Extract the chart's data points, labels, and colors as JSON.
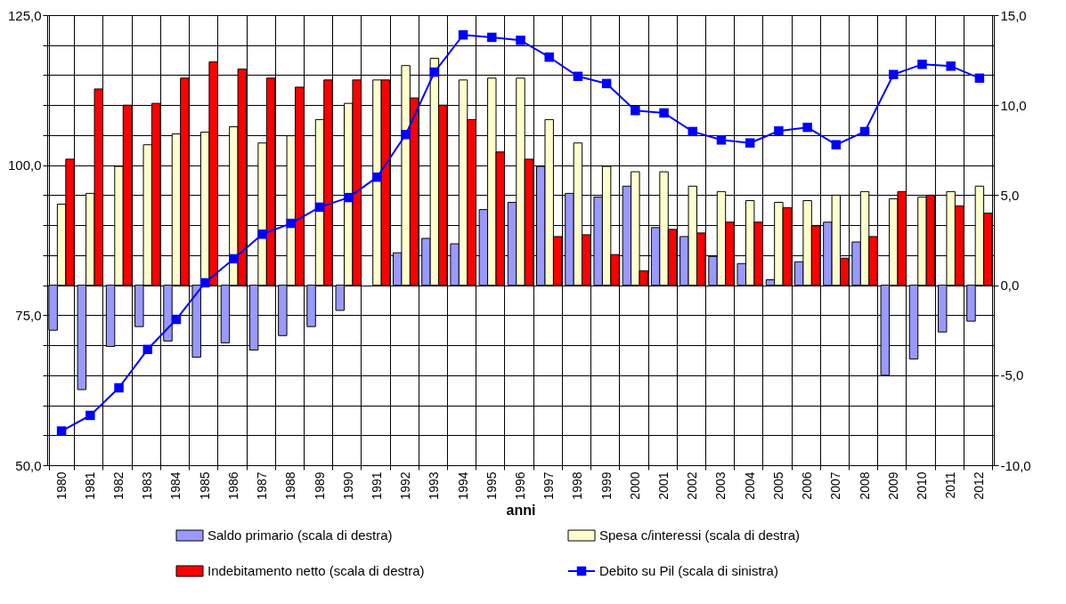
{
  "chart_data": {
    "type": "bar",
    "xlabel": "anni",
    "categories": [
      "1980",
      "1981",
      "1982",
      "1983",
      "1984",
      "1985",
      "1986",
      "1987",
      "1988",
      "1989",
      "1990",
      "1991",
      "1992",
      "1993",
      "1994",
      "1995",
      "1996",
      "1997",
      "1998",
      "1999",
      "2000",
      "2001",
      "2002",
      "2003",
      "2004",
      "2005",
      "2006",
      "2007",
      "2008",
      "2009",
      "2010",
      "2011",
      "2012"
    ],
    "series": [
      {
        "name": "Saldo primario (scala di destra)",
        "color": "#9999ff",
        "axis": "y2",
        "values": [
          -2.5,
          -5.8,
          -3.4,
          -2.3,
          -3.1,
          -4.0,
          -3.2,
          -3.6,
          -2.8,
          -2.3,
          -1.4,
          null,
          1.8,
          2.6,
          2.3,
          4.2,
          4.6,
          6.6,
          5.1,
          4.9,
          5.5,
          3.2,
          2.7,
          1.6,
          1.2,
          0.3,
          1.3,
          3.5,
          2.4,
          -5.0,
          -4.1,
          -2.6,
          -2.0
        ]
      },
      {
        "name": "Spesa c/interessi  (scala di destra)",
        "color": "#ffffcc",
        "axis": "y2",
        "values": [
          4.5,
          5.1,
          6.6,
          7.8,
          8.4,
          8.5,
          8.8,
          7.9,
          8.3,
          9.2,
          10.1,
          11.4,
          12.2,
          12.6,
          11.4,
          11.5,
          11.5,
          9.2,
          7.9,
          6.6,
          6.3,
          6.3,
          5.5,
          5.2,
          4.7,
          4.6,
          4.7,
          5.0,
          5.2,
          4.8,
          4.9,
          5.2,
          5.5
        ]
      },
      {
        "name": "Indebitamento netto (scala di destra)",
        "color": "#ff0000",
        "axis": "y2",
        "values": [
          7.0,
          10.9,
          10.0,
          10.1,
          11.5,
          12.4,
          12.0,
          11.5,
          11.0,
          11.4,
          11.4,
          11.4,
          10.4,
          10.0,
          9.2,
          7.4,
          7.0,
          2.7,
          2.8,
          1.7,
          0.8,
          3.1,
          2.9,
          3.5,
          3.5,
          4.3,
          3.3,
          1.5,
          2.7,
          5.2,
          5.0,
          4.4,
          4.0
        ]
      },
      {
        "name": "Debito su Pil (scala di sinistra)",
        "color": "#0000ff",
        "axis": "y",
        "type": "line",
        "marker": "square",
        "line_style": "solid",
        "values": [
          55.7,
          58.3,
          62.9,
          69.3,
          74.3,
          80.4,
          84.4,
          88.5,
          90.3,
          93.0,
          94.6,
          98.0,
          105.1,
          115.5,
          121.7,
          121.3,
          120.8,
          118.0,
          114.8,
          113.6,
          109.1,
          108.7,
          105.6,
          104.2,
          103.7,
          105.7,
          106.3,
          103.4,
          105.6,
          115.1,
          116.8,
          116.5,
          114.5
        ]
      }
    ],
    "ylim": [
      50,
      125
    ],
    "yticks": [
      {
        "value": 50,
        "label": "50,0"
      },
      {
        "value": 55,
        "label": null
      },
      {
        "value": 60,
        "label": null
      },
      {
        "value": 65,
        "label": null
      },
      {
        "value": 70,
        "label": null
      },
      {
        "value": 75,
        "label": "75,0"
      },
      {
        "value": 80,
        "label": null
      },
      {
        "value": 85,
        "label": null
      },
      {
        "value": 90,
        "label": null
      },
      {
        "value": 95,
        "label": null
      },
      {
        "value": 100,
        "label": "100,0"
      },
      {
        "value": 105,
        "label": null
      },
      {
        "value": 110,
        "label": null
      },
      {
        "value": 115,
        "label": null
      },
      {
        "value": 120,
        "label": null
      },
      {
        "value": 125,
        "label": "125,0"
      }
    ],
    "y2lim": [
      -10,
      15
    ],
    "y2ticks": [
      {
        "value": -10,
        "label": "-10,0"
      },
      {
        "value": -5,
        "label": "-5,0"
      },
      {
        "value": 0,
        "label": "0,0"
      },
      {
        "value": 5,
        "label": "5,0"
      },
      {
        "value": 10,
        "label": "10,0"
      },
      {
        "value": 15,
        "label": "15,0"
      }
    ],
    "grid": true,
    "legend": "bottom"
  }
}
